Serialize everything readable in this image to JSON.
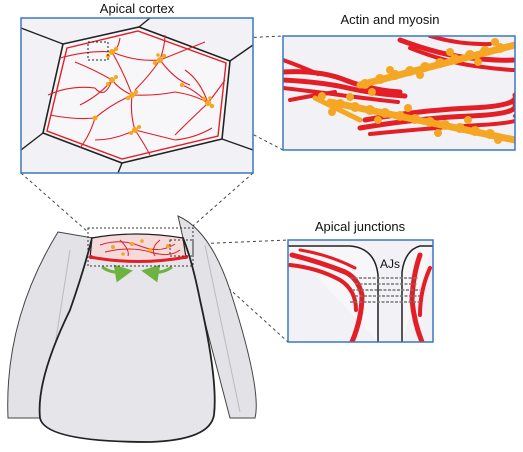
{
  "labels": {
    "apical_cortex": "Apical cortex",
    "actin_myosin": "Actin and myosin",
    "apical_junctions": "Apical junctions",
    "ajs": "AJs"
  },
  "colors": {
    "actin": "#e31e26",
    "myosin": "#f5a623",
    "frame": "#3a78c2",
    "cell_fill": "#eeeef2",
    "arrow": "#6cb33f",
    "outline": "#222222"
  }
}
